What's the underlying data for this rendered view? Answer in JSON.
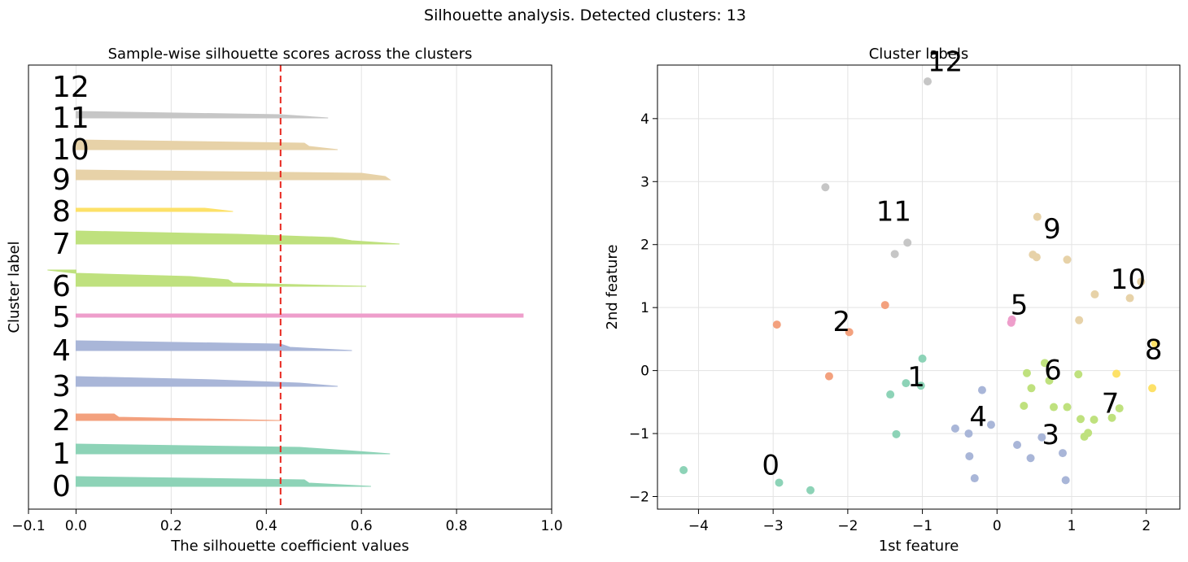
{
  "suptitle": "Silhouette analysis. Detected clusters: 13",
  "chart_data": [
    {
      "type": "area",
      "title": "Sample-wise silhouette scores across the clusters",
      "xlabel": "The silhouette coefficient values",
      "ylabel": "Cluster label",
      "xlim": [
        -0.1,
        1.0
      ],
      "xticks": [
        "−0.1",
        "0.0",
        "0.2",
        "0.4",
        "0.6",
        "0.8",
        "1.0"
      ],
      "xtick_values": [
        -0.1,
        0.0,
        0.2,
        0.4,
        0.6,
        0.8,
        1.0
      ],
      "grid": "vertical",
      "average_silhouette_line": 0.43,
      "clusters": [
        {
          "label": "0",
          "color": "#8dd3b7",
          "values": [
            0.62,
            0.49,
            0.48,
            0.0
          ]
        },
        {
          "label": "1",
          "color": "#8dd3b7",
          "values": [
            0.66,
            0.57,
            0.47,
            0.0
          ]
        },
        {
          "label": "2",
          "color": "#f3a17e",
          "values": [
            0.43,
            0.09,
            0.08
          ]
        },
        {
          "label": "3",
          "color": "#a9b6d8",
          "values": [
            0.55,
            0.47,
            0.29,
            0.0
          ]
        },
        {
          "label": "4",
          "color": "#a9b6d8",
          "values": [
            0.58,
            0.45,
            0.43,
            0.0
          ]
        },
        {
          "label": "5",
          "color": "#ee9ecb",
          "values": [
            0.94,
            0.94
          ]
        },
        {
          "label": "6",
          "color": "#bfe17e",
          "values": [
            0.61,
            0.33,
            0.32,
            0.24,
            0.0,
            -0.06
          ]
        },
        {
          "label": "7",
          "color": "#bfe17e",
          "values": [
            0.68,
            0.58,
            0.54,
            0.34,
            0.0
          ]
        },
        {
          "label": "8",
          "color": "#fde168",
          "values": [
            0.33,
            0.27
          ]
        },
        {
          "label": "9",
          "color": "#e7d2a8",
          "values": [
            0.66,
            0.65,
            0.6,
            0.0
          ]
        },
        {
          "label": "10",
          "color": "#e7d2a8",
          "values": [
            0.55,
            0.49,
            0.48,
            0.0
          ]
        },
        {
          "label": "11",
          "color": "#c6c6c6",
          "values": [
            0.53,
            0.43,
            0.0
          ]
        },
        {
          "label": "12",
          "color": "#c6c6c6",
          "values": []
        }
      ]
    },
    {
      "type": "scatter",
      "title": "Cluster labels",
      "xlabel": "1st feature",
      "ylabel": "2nd feature",
      "xlim": [
        -4.55,
        2.45
      ],
      "ylim": [
        -2.2,
        4.85
      ],
      "xticks": [
        "−4",
        "−3",
        "−2",
        "−1",
        "0",
        "1",
        "2"
      ],
      "xtick_values": [
        -4,
        -3,
        -2,
        -1,
        0,
        1,
        2
      ],
      "yticks": [
        "−2",
        "−1",
        "0",
        "1",
        "2",
        "3",
        "4"
      ],
      "ytick_values": [
        -2,
        -1,
        0,
        1,
        2,
        3,
        4
      ],
      "grid": true,
      "points": [
        {
          "x": -4.2,
          "y": -1.58,
          "color": "#8dd3b7"
        },
        {
          "x": -2.92,
          "y": -1.78,
          "color": "#8dd3b7"
        },
        {
          "x": -2.5,
          "y": -1.9,
          "color": "#8dd3b7"
        },
        {
          "x": -1.0,
          "y": 0.19,
          "color": "#8dd3b7"
        },
        {
          "x": -1.22,
          "y": -0.2,
          "color": "#8dd3b7"
        },
        {
          "x": -1.02,
          "y": -0.24,
          "color": "#8dd3b7"
        },
        {
          "x": -1.43,
          "y": -0.38,
          "color": "#8dd3b7"
        },
        {
          "x": -1.35,
          "y": -1.01,
          "color": "#8dd3b7"
        },
        {
          "x": -2.95,
          "y": 0.73,
          "color": "#f3a17e"
        },
        {
          "x": -1.98,
          "y": 0.61,
          "color": "#f3a17e"
        },
        {
          "x": -2.25,
          "y": -0.09,
          "color": "#f3a17e"
        },
        {
          "x": -1.5,
          "y": 1.04,
          "color": "#f3a17e"
        },
        {
          "x": 0.27,
          "y": -1.18,
          "color": "#a9b6d8"
        },
        {
          "x": 0.6,
          "y": -1.06,
          "color": "#a9b6d8"
        },
        {
          "x": 0.45,
          "y": -1.39,
          "color": "#a9b6d8"
        },
        {
          "x": 0.88,
          "y": -1.31,
          "color": "#a9b6d8"
        },
        {
          "x": 0.92,
          "y": -1.74,
          "color": "#a9b6d8"
        },
        {
          "x": -0.2,
          "y": -0.31,
          "color": "#a9b6d8"
        },
        {
          "x": -0.08,
          "y": -0.86,
          "color": "#a9b6d8"
        },
        {
          "x": -0.38,
          "y": -1.0,
          "color": "#a9b6d8"
        },
        {
          "x": -0.56,
          "y": -0.92,
          "color": "#a9b6d8"
        },
        {
          "x": -0.37,
          "y": -1.36,
          "color": "#a9b6d8"
        },
        {
          "x": -0.3,
          "y": -1.71,
          "color": "#a9b6d8"
        },
        {
          "x": 0.19,
          "y": 0.76,
          "color": "#ee9ecb"
        },
        {
          "x": 0.2,
          "y": 0.81,
          "color": "#ee9ecb"
        },
        {
          "x": 0.4,
          "y": -0.04,
          "color": "#bfe17e"
        },
        {
          "x": 0.64,
          "y": 0.12,
          "color": "#bfe17e"
        },
        {
          "x": 0.7,
          "y": -0.16,
          "color": "#bfe17e"
        },
        {
          "x": 0.46,
          "y": -0.28,
          "color": "#bfe17e"
        },
        {
          "x": 0.36,
          "y": -0.56,
          "color": "#bfe17e"
        },
        {
          "x": 0.76,
          "y": -0.58,
          "color": "#bfe17e"
        },
        {
          "x": 0.94,
          "y": -0.58,
          "color": "#bfe17e"
        },
        {
          "x": 1.09,
          "y": -0.06,
          "color": "#bfe17e"
        },
        {
          "x": 1.12,
          "y": -0.77,
          "color": "#bfe17e"
        },
        {
          "x": 1.3,
          "y": -0.78,
          "color": "#bfe17e"
        },
        {
          "x": 1.22,
          "y": -0.99,
          "color": "#bfe17e"
        },
        {
          "x": 1.17,
          "y": -1.05,
          "color": "#bfe17e"
        },
        {
          "x": 1.54,
          "y": -0.75,
          "color": "#bfe17e"
        },
        {
          "x": 1.64,
          "y": -0.6,
          "color": "#bfe17e"
        },
        {
          "x": 1.6,
          "y": -0.05,
          "color": "#fde168"
        },
        {
          "x": 2.12,
          "y": 0.43,
          "color": "#fde168"
        },
        {
          "x": 2.08,
          "y": -0.28,
          "color": "#fde168"
        },
        {
          "x": 0.54,
          "y": 2.44,
          "color": "#e7d2a8"
        },
        {
          "x": 0.48,
          "y": 1.84,
          "color": "#e7d2a8"
        },
        {
          "x": 0.53,
          "y": 1.8,
          "color": "#e7d2a8"
        },
        {
          "x": 0.94,
          "y": 1.76,
          "color": "#e7d2a8"
        },
        {
          "x": 1.31,
          "y": 1.21,
          "color": "#e7d2a8"
        },
        {
          "x": 1.1,
          "y": 0.8,
          "color": "#e7d2a8"
        },
        {
          "x": 1.93,
          "y": 1.41,
          "color": "#e7d2a8"
        },
        {
          "x": 1.78,
          "y": 1.15,
          "color": "#e7d2a8"
        },
        {
          "x": -2.3,
          "y": 2.91,
          "color": "#c6c6c6"
        },
        {
          "x": -1.2,
          "y": 2.03,
          "color": "#c6c6c6"
        },
        {
          "x": -1.37,
          "y": 1.85,
          "color": "#c6c6c6"
        },
        {
          "x": -0.93,
          "y": 4.59,
          "color": "#c6c6c6"
        }
      ],
      "annotations": [
        {
          "text": "0",
          "x": -3.15,
          "y": -1.65
        },
        {
          "text": "1",
          "x": -1.2,
          "y": -0.25
        },
        {
          "text": "2",
          "x": -2.2,
          "y": 0.63
        },
        {
          "text": "3",
          "x": 0.6,
          "y": -1.17
        },
        {
          "text": "4",
          "x": -0.37,
          "y": -0.88
        },
        {
          "text": "5",
          "x": 0.18,
          "y": 0.89
        },
        {
          "text": "6",
          "x": 0.63,
          "y": -0.14
        },
        {
          "text": "7",
          "x": 1.4,
          "y": -0.67
        },
        {
          "text": "8",
          "x": 1.98,
          "y": 0.18
        },
        {
          "text": "9",
          "x": 0.62,
          "y": 2.1
        },
        {
          "text": "10",
          "x": 1.52,
          "y": 1.3
        },
        {
          "text": "11",
          "x": -1.62,
          "y": 2.38
        },
        {
          "text": "12",
          "x": -0.93,
          "y": 4.75
        }
      ]
    }
  ]
}
